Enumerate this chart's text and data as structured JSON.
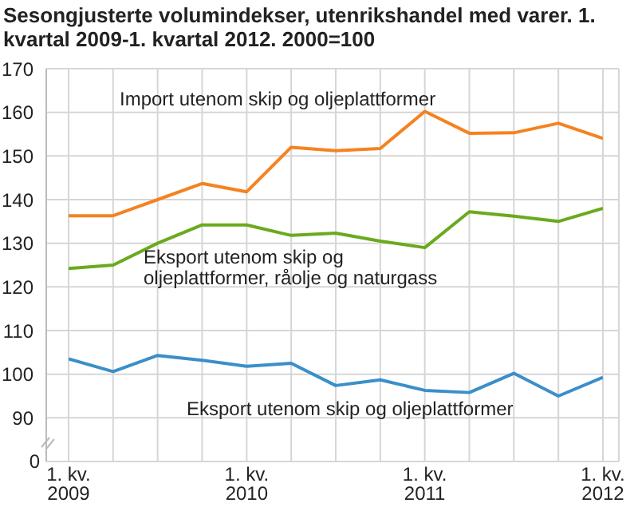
{
  "chart_data": {
    "type": "line",
    "title": "Sesongjusterte volumindekser, utenrikshandel med varer. 1. kvartal 2009-1. kvartal 2012. 2000=100",
    "categories": [
      "1. kv.\n2009",
      null,
      null,
      null,
      "1. kv.\n2010",
      null,
      null,
      null,
      "1. kv.\n2011",
      null,
      null,
      null,
      "1. kv.\n2012"
    ],
    "series": [
      {
        "name": "Import utenom skip og oljeplattformer",
        "color": "#f58220",
        "values": [
          136.3,
          136.3,
          140,
          143.7,
          141.8,
          152,
          151.2,
          151.7,
          160.2,
          155.2,
          155.3,
          157.5,
          154
        ]
      },
      {
        "name": "Eksport utenom skip og oljeplattformer, råolje og naturgass",
        "color": "#6aaa1e",
        "values": [
          124.2,
          125,
          130,
          134.2,
          134.2,
          131.8,
          132.3,
          130.5,
          129,
          137.2,
          136.2,
          135,
          138
        ]
      },
      {
        "name": "Eksport utenom skip og oljeplattformer",
        "color": "#3a8fc9",
        "values": [
          103.5,
          100.6,
          104.3,
          103.2,
          101.8,
          102.5,
          97.4,
          98.7,
          96.3,
          95.8,
          100.2,
          95,
          99.3
        ]
      }
    ],
    "ylim": [
      80,
      170
    ],
    "yticks": [
      90,
      100,
      110,
      120,
      130,
      140,
      150,
      160,
      170
    ],
    "annotations": [
      "0"
    ],
    "grid": true,
    "legend": false,
    "marker": "none",
    "line_style": "solid"
  }
}
